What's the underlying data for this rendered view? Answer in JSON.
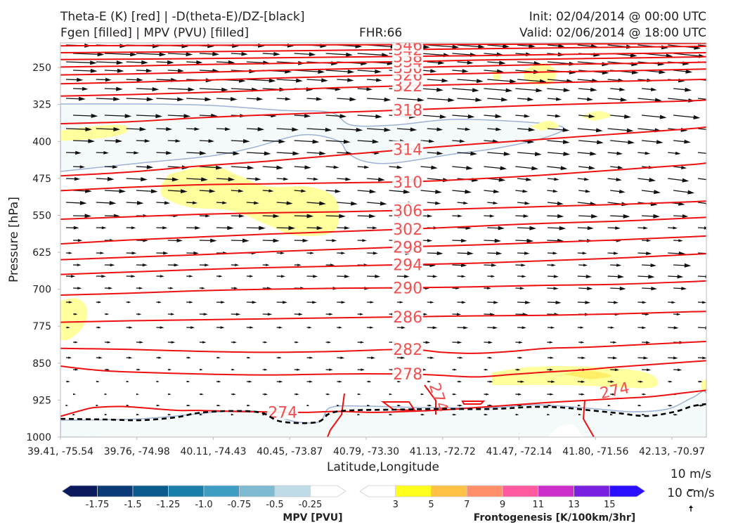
{
  "header": {
    "title_left_1": "Theta-E (K) [red] | -D(theta-E)/DZ-[black]",
    "title_left_2": "Fgen [filled] | MPV (PVU) [filled]",
    "fhr": "FHR:66",
    "init": "Init: 02/04/2014 @ 00:00 UTC",
    "valid": "Valid: 02/06/2014 @ 18:00 UTC"
  },
  "chart_data": {
    "type": "cross-section",
    "xlabel": "Latitude,Longitude",
    "ylabel": "Pressure [hPa]",
    "y_scale": "linear, inverted",
    "ylim": [
      1000,
      200
    ],
    "y_ticks": [
      250,
      325,
      400,
      475,
      550,
      625,
      700,
      775,
      850,
      925,
      1000
    ],
    "x_ticks": [
      "39.41, -75.54",
      "39.76, -74.98",
      "40.11, -74.43",
      "40.45, -73.87",
      "40.79, -73.30",
      "41.13, -72.72",
      "41.47, -72.14",
      "41.80, -71.56",
      "42.13, -70.97"
    ],
    "theta_e_contours": [
      {
        "level": 274,
        "label": "274",
        "points": [
          [
            0.0,
            958
          ],
          [
            0.3,
            946
          ],
          [
            0.5,
            940
          ],
          [
            0.9,
            938
          ],
          [
            1.3,
            942
          ],
          [
            1.7,
            946
          ],
          [
            2.0,
            946
          ],
          [
            2.5,
            948
          ],
          [
            3.0,
            949
          ],
          [
            3.5,
            950
          ],
          [
            4.0,
            948
          ],
          [
            4.5,
            950
          ],
          [
            5.0,
            948
          ],
          [
            5.5,
            945
          ],
          [
            6.0,
            940
          ],
          [
            6.5,
            935
          ],
          [
            7.0,
            930
          ],
          [
            7.5,
            926
          ],
          [
            8.0,
            922
          ],
          [
            8.5,
            918
          ],
          [
            9.0,
            910
          ],
          [
            9.3,
            905
          ]
        ]
      },
      {
        "level": 278,
        "label": "278",
        "points": [
          [
            0.0,
            856
          ],
          [
            0.5,
            864
          ],
          [
            1.0,
            868
          ],
          [
            2.0,
            872
          ],
          [
            3.0,
            874
          ],
          [
            4.0,
            872
          ],
          [
            5.0,
            872
          ],
          [
            5.5,
            875
          ],
          [
            6.0,
            878
          ],
          [
            6.5,
            873
          ],
          [
            7.0,
            868
          ],
          [
            7.5,
            864
          ],
          [
            8.0,
            858
          ],
          [
            9.0,
            848
          ],
          [
            9.3,
            845
          ]
        ]
      },
      {
        "level": 282,
        "label": "282",
        "points": [
          [
            0.0,
            820
          ],
          [
            1.0,
            822
          ],
          [
            2.0,
            826
          ],
          [
            3.0,
            828
          ],
          [
            4.0,
            826
          ],
          [
            5.0,
            822
          ],
          [
            5.5,
            828
          ],
          [
            6.0,
            830
          ],
          [
            6.5,
            826
          ],
          [
            7.0,
            820
          ],
          [
            7.5,
            818
          ],
          [
            8.0,
            815
          ],
          [
            9.0,
            808
          ],
          [
            9.3,
            806
          ]
        ]
      },
      {
        "level": 286,
        "label": "286",
        "points": [
          [
            0.0,
            767
          ],
          [
            1.0,
            764
          ],
          [
            2.0,
            762
          ],
          [
            3.0,
            760
          ],
          [
            4.0,
            758
          ],
          [
            5.0,
            756
          ],
          [
            6.0,
            754
          ],
          [
            7.0,
            753
          ],
          [
            8.0,
            750
          ],
          [
            9.0,
            746
          ],
          [
            9.3,
            745
          ]
        ]
      },
      {
        "level": 290,
        "label": "290",
        "points": [
          [
            0.0,
            712
          ],
          [
            1.0,
            708
          ],
          [
            2.0,
            703
          ],
          [
            3.0,
            700
          ],
          [
            4.0,
            698
          ],
          [
            5.0,
            697
          ],
          [
            6.0,
            695
          ],
          [
            7.0,
            692
          ],
          [
            8.0,
            690
          ],
          [
            9.0,
            685
          ],
          [
            9.3,
            683
          ]
        ]
      },
      {
        "level": 294,
        "label": "294",
        "points": [
          [
            0.0,
            670
          ],
          [
            1.0,
            665
          ],
          [
            2.0,
            660
          ],
          [
            3.0,
            656
          ],
          [
            4.0,
            653
          ],
          [
            5.0,
            650
          ],
          [
            6.0,
            647
          ],
          [
            7.0,
            642
          ],
          [
            8.0,
            637
          ],
          [
            9.0,
            630
          ],
          [
            9.3,
            628
          ]
        ]
      },
      {
        "level": 298,
        "label": "298",
        "points": [
          [
            0.0,
            640
          ],
          [
            1.0,
            635
          ],
          [
            2.0,
            630
          ],
          [
            3.0,
            624
          ],
          [
            4.0,
            619
          ],
          [
            5.0,
            614
          ],
          [
            6.0,
            610
          ],
          [
            7.0,
            605
          ],
          [
            8.0,
            600
          ],
          [
            9.0,
            594
          ],
          [
            9.3,
            592
          ]
        ]
      },
      {
        "level": 302,
        "label": "302",
        "points": [
          [
            0.0,
            608
          ],
          [
            1.0,
            600
          ],
          [
            2.0,
            594
          ],
          [
            3.0,
            588
          ],
          [
            4.0,
            583
          ],
          [
            5.0,
            578
          ],
          [
            6.0,
            572
          ],
          [
            7.0,
            566
          ],
          [
            8.0,
            562
          ],
          [
            9.0,
            556
          ],
          [
            9.3,
            554
          ]
        ]
      },
      {
        "level": 306,
        "label": "306",
        "points": [
          [
            0.0,
            558
          ],
          [
            1.0,
            553
          ],
          [
            2.0,
            548
          ],
          [
            3.0,
            545
          ],
          [
            4.0,
            543
          ],
          [
            5.0,
            540
          ],
          [
            6.0,
            536
          ],
          [
            7.0,
            532
          ],
          [
            8.0,
            528
          ],
          [
            9.0,
            523
          ],
          [
            9.3,
            521
          ]
        ]
      },
      {
        "level": 310,
        "label": "310",
        "points": [
          [
            0.0,
            500
          ],
          [
            1.0,
            493
          ],
          [
            2.0,
            488
          ],
          [
            3.0,
            486
          ],
          [
            4.0,
            484
          ],
          [
            5.0,
            482
          ],
          [
            6.0,
            476
          ],
          [
            7.0,
            468
          ],
          [
            8.0,
            458
          ],
          [
            9.0,
            448
          ],
          [
            9.3,
            444
          ]
        ]
      },
      {
        "level": 314,
        "label": "314",
        "points": [
          [
            0.0,
            470
          ],
          [
            1.0,
            462
          ],
          [
            2.0,
            450
          ],
          [
            3.0,
            440
          ],
          [
            4.0,
            428
          ],
          [
            5.0,
            416
          ],
          [
            6.0,
            405
          ],
          [
            7.0,
            395
          ],
          [
            8.0,
            385
          ],
          [
            9.0,
            375
          ],
          [
            9.3,
            371
          ]
        ]
      },
      {
        "level": 318,
        "label": "318",
        "points": [
          [
            0.0,
            364
          ],
          [
            1.0,
            360
          ],
          [
            2.0,
            352
          ],
          [
            3.0,
            346
          ],
          [
            4.0,
            341
          ],
          [
            5.0,
            336
          ],
          [
            6.0,
            331
          ],
          [
            7.0,
            326
          ],
          [
            8.0,
            322
          ],
          [
            9.0,
            318
          ],
          [
            9.3,
            316
          ]
        ]
      },
      {
        "level": 322,
        "label": "322",
        "points": [
          [
            0.0,
            308
          ],
          [
            1.0,
            305
          ],
          [
            2.0,
            301
          ],
          [
            3.0,
            296
          ],
          [
            4.0,
            291
          ],
          [
            5.0,
            287
          ],
          [
            6.0,
            284
          ],
          [
            7.0,
            281
          ],
          [
            8.0,
            278
          ],
          [
            9.0,
            275
          ],
          [
            9.3,
            274
          ]
        ]
      },
      {
        "level": 326,
        "label": "326",
        "points": [
          [
            0.0,
            283
          ],
          [
            1.0,
            280
          ],
          [
            2.0,
            276
          ],
          [
            3.0,
            272
          ],
          [
            4.0,
            268
          ],
          [
            5.0,
            265
          ],
          [
            6.0,
            262
          ],
          [
            7.0,
            259
          ],
          [
            8.0,
            257
          ],
          [
            9.0,
            254
          ],
          [
            9.3,
            253
          ]
        ]
      },
      {
        "level": 330,
        "label": "330",
        "points": [
          [
            0.0,
            265
          ],
          [
            1.0,
            263
          ],
          [
            2.0,
            260
          ],
          [
            3.0,
            256
          ],
          [
            4.0,
            253
          ],
          [
            5.0,
            250
          ],
          [
            6.0,
            247
          ],
          [
            7.0,
            244
          ],
          [
            8.0,
            242
          ],
          [
            9.0,
            240
          ],
          [
            9.3,
            239
          ]
        ]
      },
      {
        "level": 334,
        "label": "334",
        "points": [
          [
            0.0,
            249
          ],
          [
            1.0,
            247
          ],
          [
            2.0,
            244
          ],
          [
            3.0,
            242
          ],
          [
            4.0,
            240
          ],
          [
            5.0,
            238
          ],
          [
            6.0,
            235
          ],
          [
            7.0,
            233
          ],
          [
            8.0,
            231
          ],
          [
            9.0,
            229
          ],
          [
            9.3,
            228
          ]
        ]
      },
      {
        "level": 338,
        "label": "338",
        "points": [
          [
            0.0,
            234
          ],
          [
            2.0,
            232
          ],
          [
            4.0,
            229
          ],
          [
            6.0,
            226
          ],
          [
            8.0,
            222
          ],
          [
            9.3,
            220
          ]
        ]
      },
      {
        "level": 342,
        "label": "342",
        "points": [
          [
            0.0,
            220
          ],
          [
            2.0,
            218
          ],
          [
            4.0,
            215
          ],
          [
            6.0,
            212
          ],
          [
            8.0,
            209
          ],
          [
            9.3,
            207
          ]
        ]
      },
      {
        "level": 346,
        "label": "346",
        "points": [
          [
            0.0,
            206
          ],
          [
            2.0,
            205
          ],
          [
            4.0,
            204
          ],
          [
            6.0,
            203
          ],
          [
            8.0,
            202
          ],
          [
            9.3,
            201
          ]
        ]
      }
    ],
    "mpv_colorbar": {
      "title": "MPV [PVU]",
      "levels": [
        "-1.75",
        "-1.5",
        "-1.25",
        "-1.0",
        "-0.75",
        "-0.5",
        "-0.25"
      ],
      "colors": [
        "#0a1a5c",
        "#0b3a78",
        "#0b5b8f",
        "#1a7ea8",
        "#3e9dc2",
        "#7fbad3",
        "#bedbe7",
        "#ffffff"
      ]
    },
    "fgen_colorbar": {
      "title": "Frontogenesis [K/100km/3hr]",
      "levels": [
        "3",
        "5",
        "7",
        "9",
        "11",
        "13",
        "15"
      ],
      "colors": [
        "#ffffff",
        "#ffff1e",
        "#ffc244",
        "#ff8f6a",
        "#ff5aa0",
        "#cc2ecc",
        "#7a20e0",
        "#2a10ff"
      ]
    },
    "wind_reference": {
      "u_label": "10 m/s",
      "w_label": "10 cm/s"
    }
  }
}
